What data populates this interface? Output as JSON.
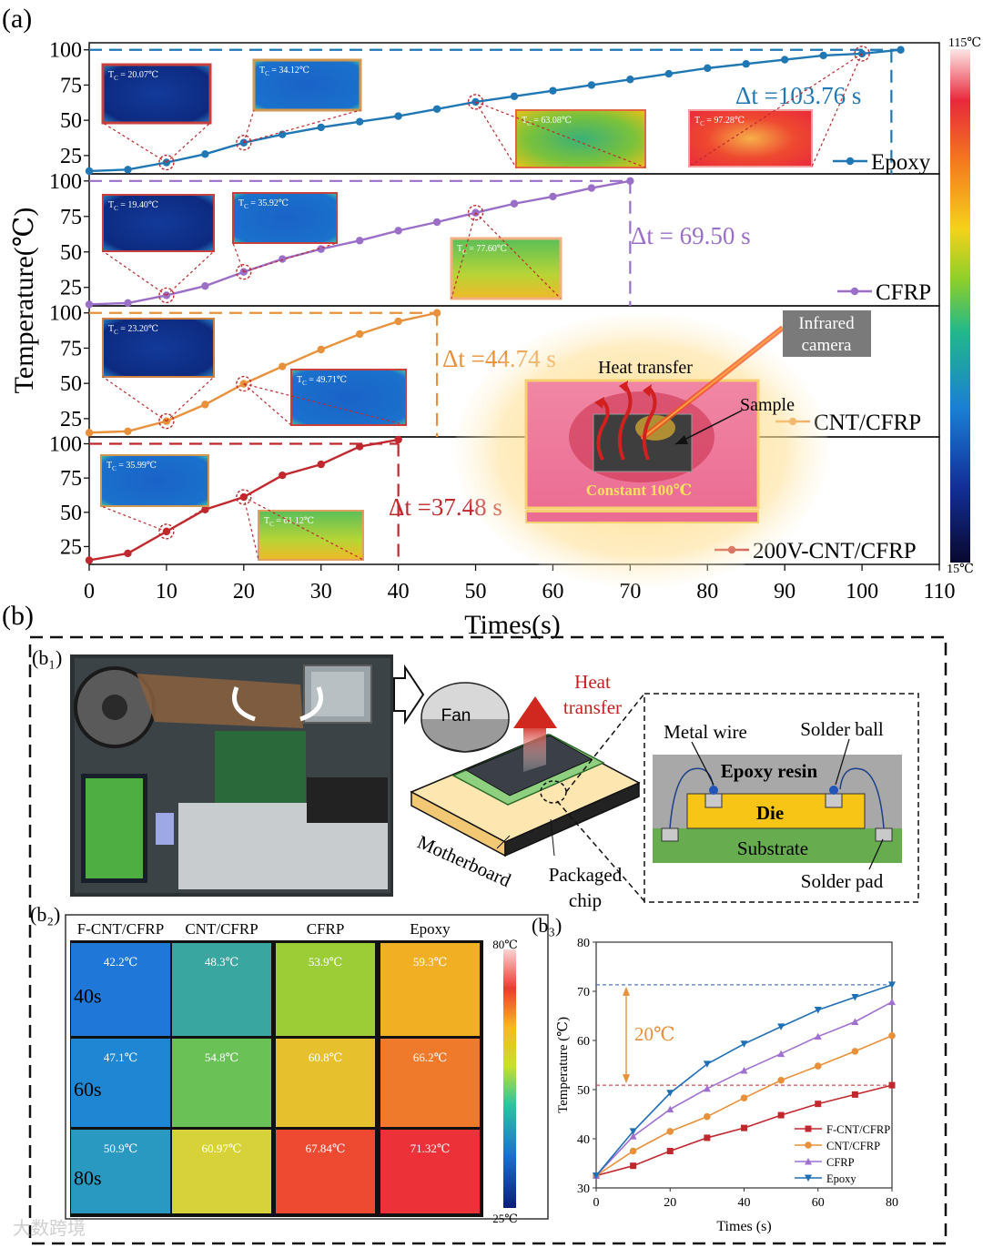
{
  "panel_labels": {
    "a": "(a)",
    "b": "(b)",
    "b1": "(b₁)",
    "b2": "(b₂)",
    "b3": "(b₃)"
  },
  "panel_a": {
    "ylabel": "Temperature(℃)",
    "xlabel": "Times(s)",
    "xticks": [
      "0",
      "10",
      "20",
      "30",
      "40",
      "50",
      "60",
      "70",
      "80",
      "90",
      "100",
      "110"
    ],
    "yticks": [
      "25",
      "50",
      "75",
      "100"
    ],
    "colorbar": {
      "max_label": "115℃",
      "min_label": "15℃"
    },
    "subplots": [
      {
        "name": "Epoxy",
        "legend": "Epoxy",
        "color": "#1f77b4",
        "dt_label": "Δt =103.76 s",
        "highlight_times": [
          10,
          20,
          50,
          100
        ],
        "thermal_labels": [
          "T<sub>C</sub> = 20.07℃",
          "T<sub>C</sub> = 34.12℃",
          "T<sub>C</sub> = 63.08℃",
          "T<sub>C</sub> = 97.28℃"
        ]
      },
      {
        "name": "CFRP",
        "legend": "CFRP",
        "color": "#9b6fc8",
        "dt_label": "Δt = 69.50 s",
        "highlight_times": [
          10,
          20,
          50
        ],
        "thermal_labels": [
          "T<sub>C</sub> = 19.40℃",
          "T<sub>C</sub> = 35.92℃",
          "T<sub>C</sub> = 77.60℃"
        ]
      },
      {
        "name": "CNT/CFRP",
        "legend": "CNT/CFRP",
        "color": "#e8913a",
        "dt_label": "Δt =44.74 s",
        "highlight_times": [
          10,
          20
        ],
        "thermal_labels": [
          "T<sub>C</sub> = 23.20℃",
          "T<sub>C</sub> = 49.71℃"
        ]
      },
      {
        "name": "200V-CNT/CFRP",
        "legend": "200V-CNT/CFRP",
        "color": "#c0282d",
        "dt_label": "Δt =37.48 s",
        "highlight_times": [
          10,
          20
        ],
        "thermal_labels": [
          "T<sub>C</sub> = 35.99℃",
          "T<sub>C</sub> = 61.12℃"
        ]
      }
    ],
    "inset": {
      "camera": "Infrared camera",
      "heat_transfer": "Heat transfer",
      "sample": "Sample",
      "constant": "Constant  100℃"
    }
  },
  "chart_data": [
    {
      "type": "line",
      "title": "",
      "xlabel": "Times(s)",
      "ylabel": "Temperature(℃)",
      "xlim": [
        0,
        110
      ],
      "ylim": [
        12,
        105
      ],
      "series": [
        {
          "name": "Epoxy",
          "x": [
            0,
            5,
            10,
            15,
            20,
            25,
            30,
            35,
            40,
            45,
            50,
            55,
            60,
            65,
            70,
            75,
            80,
            85,
            90,
            95,
            100,
            105
          ],
          "y": [
            14,
            15,
            20.07,
            26,
            34.12,
            40,
            45,
            49,
            53,
            58,
            63.08,
            67,
            71,
            75,
            79,
            83,
            87,
            90,
            93,
            96,
            97.28,
            100
          ]
        },
        {
          "name": "CFRP",
          "x": [
            0,
            5,
            10,
            15,
            20,
            25,
            30,
            35,
            40,
            45,
            50,
            55,
            60,
            65,
            70
          ],
          "y": [
            13,
            14,
            19.4,
            26,
            35.92,
            45,
            52,
            58,
            65,
            71,
            77.6,
            84,
            89,
            95,
            100
          ]
        },
        {
          "name": "CNT/CFRP",
          "x": [
            0,
            5,
            10,
            15,
            20,
            25,
            30,
            35,
            40,
            45
          ],
          "y": [
            15,
            16,
            23.2,
            35,
            49.71,
            62,
            74,
            85,
            94,
            100
          ]
        },
        {
          "name": "200V-CNT/CFRP",
          "x": [
            0,
            5,
            10,
            15,
            20,
            25,
            30,
            35,
            40
          ],
          "y": [
            15,
            20,
            35.99,
            52,
            61.12,
            77,
            85,
            98,
            103
          ]
        }
      ],
      "annotations": [
        "Δt =103.76 s",
        "Δt = 69.50 s",
        "Δt =44.74 s",
        "Δt =37.48 s"
      ]
    },
    {
      "type": "line",
      "title": "",
      "xlabel": "Times (s)",
      "ylabel": "Temperature (℃)",
      "xlim": [
        0,
        80
      ],
      "ylim": [
        30,
        80
      ],
      "xticks": [
        0,
        20,
        40,
        60,
        80
      ],
      "yticks": [
        30,
        40,
        50,
        60,
        70,
        80
      ],
      "series": [
        {
          "name": "F-CNT/CFRP",
          "color": "#c0282d",
          "marker": "square",
          "x": [
            0,
            10,
            20,
            30,
            40,
            50,
            60,
            70,
            80
          ],
          "y": [
            32.5,
            34.5,
            37.5,
            40.2,
            42.2,
            44.8,
            47.1,
            49.0,
            50.9
          ]
        },
        {
          "name": "CNT/CFRP",
          "color": "#e8913a",
          "marker": "circle",
          "x": [
            0,
            10,
            20,
            30,
            40,
            50,
            60,
            70,
            80
          ],
          "y": [
            32.5,
            37.5,
            41.5,
            44.5,
            48.3,
            51.9,
            54.8,
            57.8,
            60.97
          ]
        },
        {
          "name": "CFRP",
          "color": "#a070d0",
          "marker": "triangle-up",
          "x": [
            0,
            10,
            20,
            30,
            40,
            50,
            60,
            70,
            80
          ],
          "y": [
            32.5,
            40.5,
            46,
            50.2,
            53.9,
            57.3,
            60.8,
            63.8,
            67.84
          ]
        },
        {
          "name": "Epoxy",
          "color": "#1f6fb4",
          "marker": "triangle-down",
          "x": [
            0,
            10,
            20,
            30,
            40,
            50,
            60,
            70,
            80
          ],
          "y": [
            32.5,
            41.5,
            49.3,
            55.2,
            59.3,
            62.8,
            66.2,
            68.8,
            71.32
          ]
        }
      ],
      "annotations": [
        "20℃"
      ],
      "legend_position": "bottom-right"
    }
  ],
  "panel_b1": {
    "fan": "Fan",
    "heat_transfer": "Heat transfer",
    "motherboard": "Motherboard",
    "packaged_chip": "Packaged chip",
    "metal_wire": "Metal wire",
    "solder_ball": "Solder ball",
    "epoxy_resin": "Epoxy resin",
    "die": "Die",
    "substrate": "Substrate",
    "solder_pad": "Solder pad"
  },
  "panel_b2": {
    "columns": [
      "F-CNT/CFRP",
      "CNT/CFRP",
      "CFRP",
      "Epoxy"
    ],
    "rows": [
      "40s",
      "60s",
      "80s"
    ],
    "values": [
      [
        "42.2℃",
        "48.3℃",
        "53.9℃",
        "59.3℃"
      ],
      [
        "47.1℃",
        "54.8℃",
        "60.8℃",
        "66.2℃"
      ],
      [
        "50.9℃",
        "60.97℃",
        "67.84℃",
        "71.32℃"
      ]
    ],
    "colorbar": {
      "max_label": "80℃",
      "min_label": "25℃"
    }
  },
  "watermark": "大数跨境",
  "colors": {
    "epoxy": "#1f77b4",
    "cfrp": "#9b6fc8",
    "cnt": "#e8913a",
    "v200": "#c0282d"
  }
}
